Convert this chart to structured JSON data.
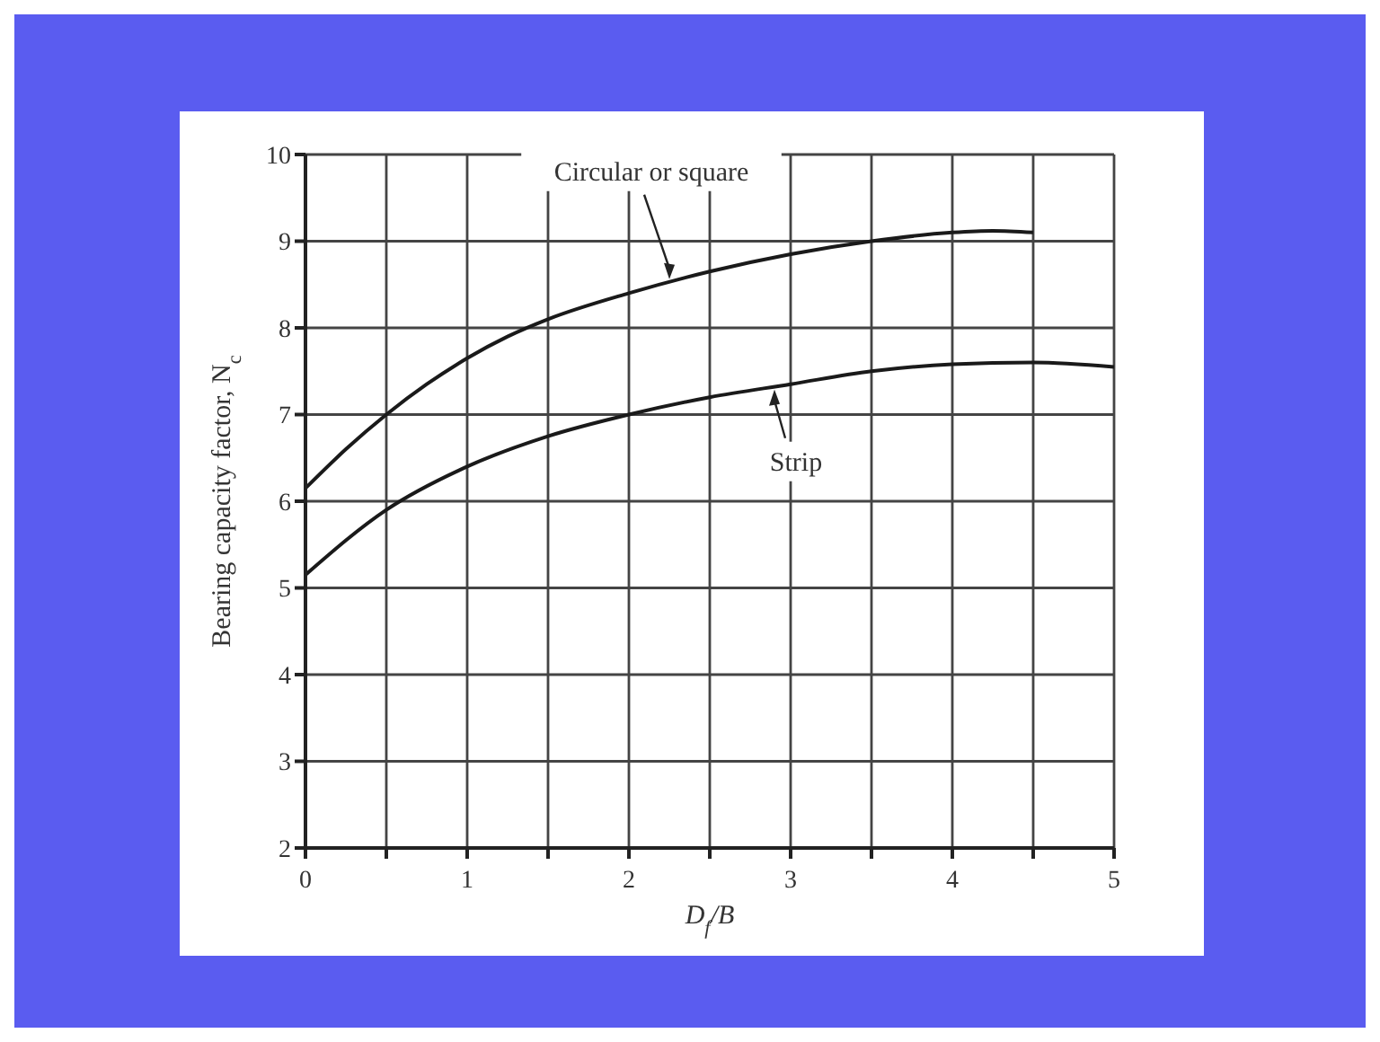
{
  "chart_data": {
    "type": "line",
    "xlabel": "D$_{f}$/B",
    "ylabel": "Bearing capacity factor, N$_{c}$",
    "xlim": [
      0,
      5
    ],
    "ylim": [
      2,
      10
    ],
    "xticks": [
      0,
      {
        "value": 0.5,
        "label": null
      },
      1,
      {
        "value": 1.5,
        "label": null
      },
      2,
      {
        "value": 2.5,
        "label": null
      },
      3,
      {
        "value": 3.5,
        "label": null
      },
      4,
      {
        "value": 4.5,
        "label": null
      },
      5
    ],
    "yticks": [
      2,
      3,
      4,
      5,
      6,
      7,
      8,
      9,
      10
    ],
    "grid": true,
    "marker": "none",
    "series": [
      {
        "color": "#1a1a1a",
        "x": [
          0,
          0.25,
          0.5,
          0.75,
          1,
          1.25,
          1.5,
          2,
          2.5,
          3,
          3.5,
          4,
          4.25,
          4.5
        ],
        "values": [
          6.15,
          6.6,
          7.0,
          7.35,
          7.65,
          7.9,
          8.1,
          8.4,
          8.65,
          8.85,
          9.0,
          9.1,
          9.12,
          9.1
        ]
      },
      {
        "color": "#1a1a1a",
        "x": [
          0,
          0.5,
          1,
          1.5,
          2,
          2.5,
          3,
          3.5,
          4,
          4.5,
          5
        ],
        "values": [
          5.15,
          5.9,
          6.4,
          6.75,
          7.0,
          7.2,
          7.35,
          7.5,
          7.58,
          7.6,
          7.55
        ]
      }
    ],
    "annotations": [
      {
        "text": "Circular or square",
        "x": 2.25,
        "y": 8.5
      },
      {
        "text": "Strip",
        "x": 2.9,
        "y": 7.35
      }
    ]
  }
}
